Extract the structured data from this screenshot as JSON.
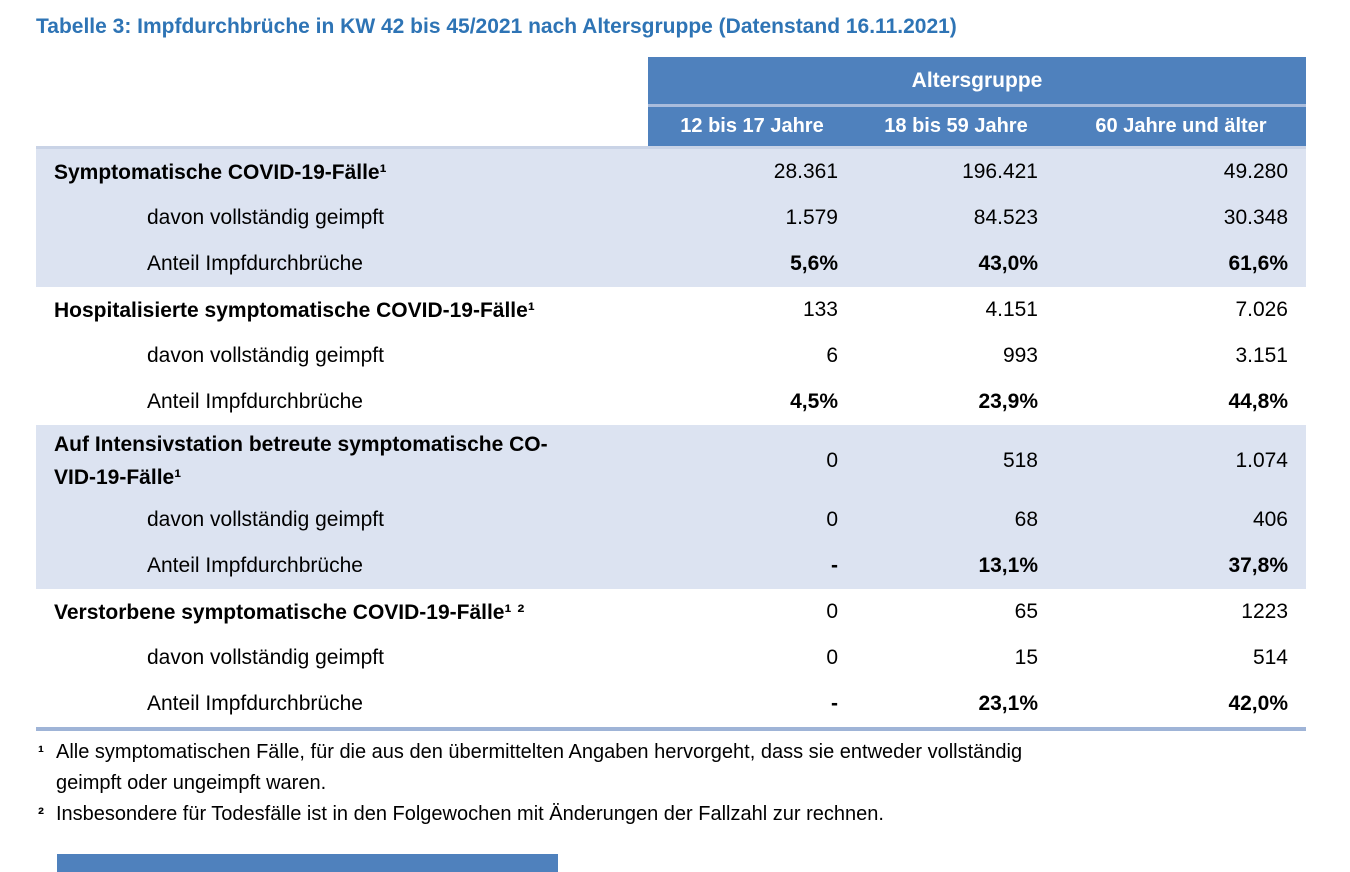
{
  "title": "Tabelle 3: Impfdurchbrüche in KW 42 bis 45/2021 nach Altersgruppe (Datenstand 16.11.2021)",
  "colors": {
    "title_color": "#2E74B5",
    "header_bg": "#4F81BD",
    "header_divider": "#A9BCDC",
    "row_shade": "#DCE3F1",
    "border_top": "#C9D3E6",
    "border_bottom": "#9FB4D7"
  },
  "table": {
    "group_header": "Altersgruppe",
    "columns": [
      "12 bis 17 Jahre",
      "18 bis 59 Jahre",
      "60 Jahre und älter"
    ],
    "sections": [
      {
        "label": "Symptomatische COVID-19-Fälle¹",
        "values": [
          "28.361",
          "196.421",
          "49.280"
        ],
        "sub_rows": [
          {
            "label": "davon vollständig geimpft",
            "values": [
              "1.579",
              "84.523",
              "30.348"
            ]
          },
          {
            "label": "Anteil Impfdurchbrüche",
            "values": [
              "5,6%",
              "43,0%",
              "61,6%"
            ]
          }
        ]
      },
      {
        "label": "Hospitalisierte symptomatische COVID-19-Fälle¹",
        "values": [
          "133",
          "4.151",
          "7.026"
        ],
        "sub_rows": [
          {
            "label": "davon vollständig geimpft",
            "values": [
              "6",
              "993",
              "3.151"
            ]
          },
          {
            "label": "Anteil Impfdurchbrüche",
            "values": [
              "4,5%",
              "23,9%",
              "44,8%"
            ]
          }
        ]
      },
      {
        "label": "Auf Intensivstation betreute symptomatische CO-\nVID-19-Fälle¹",
        "values": [
          "0",
          "518",
          "1.074"
        ],
        "sub_rows": [
          {
            "label": "davon vollständig geimpft",
            "values": [
              "0",
              "68",
              "406"
            ]
          },
          {
            "label": "Anteil Impfdurchbrüche",
            "values": [
              "-",
              "13,1%",
              "37,8%"
            ]
          }
        ]
      },
      {
        "label": "Verstorbene symptomatische COVID-19-Fälle¹ ²",
        "values": [
          "0",
          "65",
          "1223"
        ],
        "sub_rows": [
          {
            "label": "davon vollständig geimpft",
            "values": [
              "0",
              "15",
              "514"
            ]
          },
          {
            "label": "Anteil Impfdurchbrüche",
            "values": [
              "-",
              "23,1%",
              "42,0%"
            ]
          }
        ]
      }
    ]
  },
  "footnotes": [
    {
      "marker": "¹",
      "text": "Alle symptomatischen Fälle, für die aus den übermittelten Angaben hervorgeht, dass sie entweder vollständig\ngeimpft oder ungeimpft waren."
    },
    {
      "marker": "²",
      "text": "Insbesondere für Todesfälle ist in den Folgewochen mit Änderungen der Fallzahl zur rechnen."
    }
  ]
}
